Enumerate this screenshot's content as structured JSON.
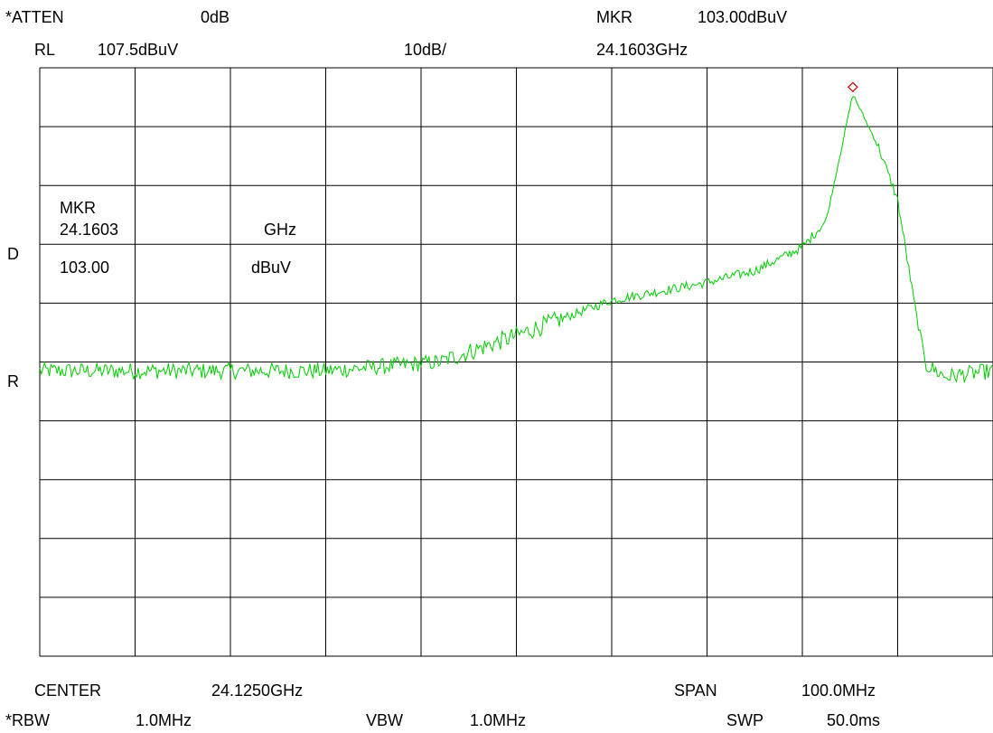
{
  "header": {
    "atten_label": "*ATTEN",
    "atten_value": "0dB",
    "rl_label": "RL",
    "rl_value": "107.5dBuV",
    "scale": "10dB/",
    "mkr_label": "MKR",
    "mkr_value": "103.00dBuV",
    "mkr_freq": "24.1603GHz"
  },
  "side": {
    "d_label": "D",
    "r_label": "R"
  },
  "marker_readout": {
    "label": "MKR",
    "freq": "24.1603",
    "freq_unit": "GHz",
    "amp": "103.00",
    "amp_unit": "dBuV"
  },
  "footer": {
    "center_label": "CENTER",
    "center_value": "24.1250GHz",
    "span_label": "SPAN",
    "span_value": "100.0MHz",
    "rbw_label": "*RBW",
    "rbw_value": "1.0MHz",
    "vbw_label": "VBW",
    "vbw_value": "1.0MHz",
    "swp_label": "SWP",
    "swp_value": "50.0ms"
  },
  "colors": {
    "trace": "#00cc00",
    "marker": "#cc0000",
    "grid": "#000000"
  },
  "chart_data": {
    "type": "line",
    "x_unit": "GHz",
    "y_unit": "dBuV",
    "xlim": [
      24.075,
      24.175
    ],
    "ylim": [
      7.5,
      107.5
    ],
    "grid": true,
    "x": [
      24.075,
      24.085,
      24.095,
      24.105,
      24.117,
      24.125,
      24.135,
      24.145,
      24.15,
      24.155,
      24.1575,
      24.1603,
      24.1615,
      24.163,
      24.165,
      24.167,
      24.168,
      24.17,
      24.175
    ],
    "y": [
      56,
      56,
      56,
      56,
      57.5,
      62,
      68,
      71,
      73,
      77,
      81.5,
      103,
      99,
      94,
      85,
      65,
      57,
      55,
      56
    ],
    "marker": {
      "x": 24.1603,
      "y": 103.0
    }
  }
}
